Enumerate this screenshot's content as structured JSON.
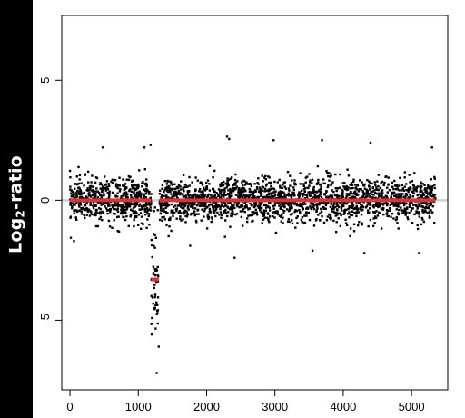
{
  "ylabel_main": "Log",
  "ylabel_sub": "2",
  "ylabel_tail": "-ratio",
  "chart_data": {
    "type": "scatter",
    "title": "",
    "xlabel": "",
    "ylabel": "Log2-ratio",
    "xlim": [
      -120,
      5530
    ],
    "ylim": [
      -7.9,
      7.7
    ],
    "xticks": [
      0,
      1000,
      2000,
      3000,
      4000,
      5000
    ],
    "xtick_labels": [
      "0",
      "1000",
      "2000",
      "3000",
      "4000",
      "5000"
    ],
    "yticks": [
      -5,
      0,
      5
    ],
    "ytick_labels": [
      "−5",
      "0",
      "5"
    ],
    "reference_line": {
      "y": 0,
      "color": "#c8d0e0"
    },
    "segments": [
      {
        "x_start": 0,
        "x_end": 1190,
        "value": 0.0,
        "color": "#dd3333"
      },
      {
        "x_start": 1190,
        "x_end": 1300,
        "value": -3.3,
        "color": "#dd3333"
      },
      {
        "x_start": 1310,
        "x_end": 5350,
        "value": 0.0,
        "color": "#dd3333"
      }
    ],
    "points_summary": {
      "total_points": 5350,
      "regions": [
        {
          "x_start": 0,
          "x_end": 1190,
          "mean": 0.0,
          "sd": 0.45
        },
        {
          "x_start": 1190,
          "x_end": 1300,
          "mean": -3.3,
          "sd": 1.2
        },
        {
          "x_start": 1310,
          "x_end": 5350,
          "mean": 0.0,
          "sd": 0.45
        }
      ]
    },
    "outliers": [
      {
        "x": 2300,
        "y": 2.65
      },
      {
        "x": 2330,
        "y": 2.55
      },
      {
        "x": 1270,
        "y": -7.2
      },
      {
        "x": 1300,
        "y": -6.1
      },
      {
        "x": 1180,
        "y": 2.3
      },
      {
        "x": 1090,
        "y": 2.2
      },
      {
        "x": 480,
        "y": 2.2
      },
      {
        "x": 2980,
        "y": 2.5
      },
      {
        "x": 3690,
        "y": 2.5
      },
      {
        "x": 4400,
        "y": 2.4
      },
      {
        "x": 5300,
        "y": 2.2
      },
      {
        "x": 2410,
        "y": -2.4
      },
      {
        "x": 3550,
        "y": -2.1
      },
      {
        "x": 4310,
        "y": -2.2
      },
      {
        "x": 5110,
        "y": -2.2
      },
      {
        "x": 60,
        "y": -1.7
      },
      {
        "x": 1760,
        "y": -1.9
      }
    ],
    "point_color": "#000000",
    "grid": false,
    "legend": "none"
  }
}
